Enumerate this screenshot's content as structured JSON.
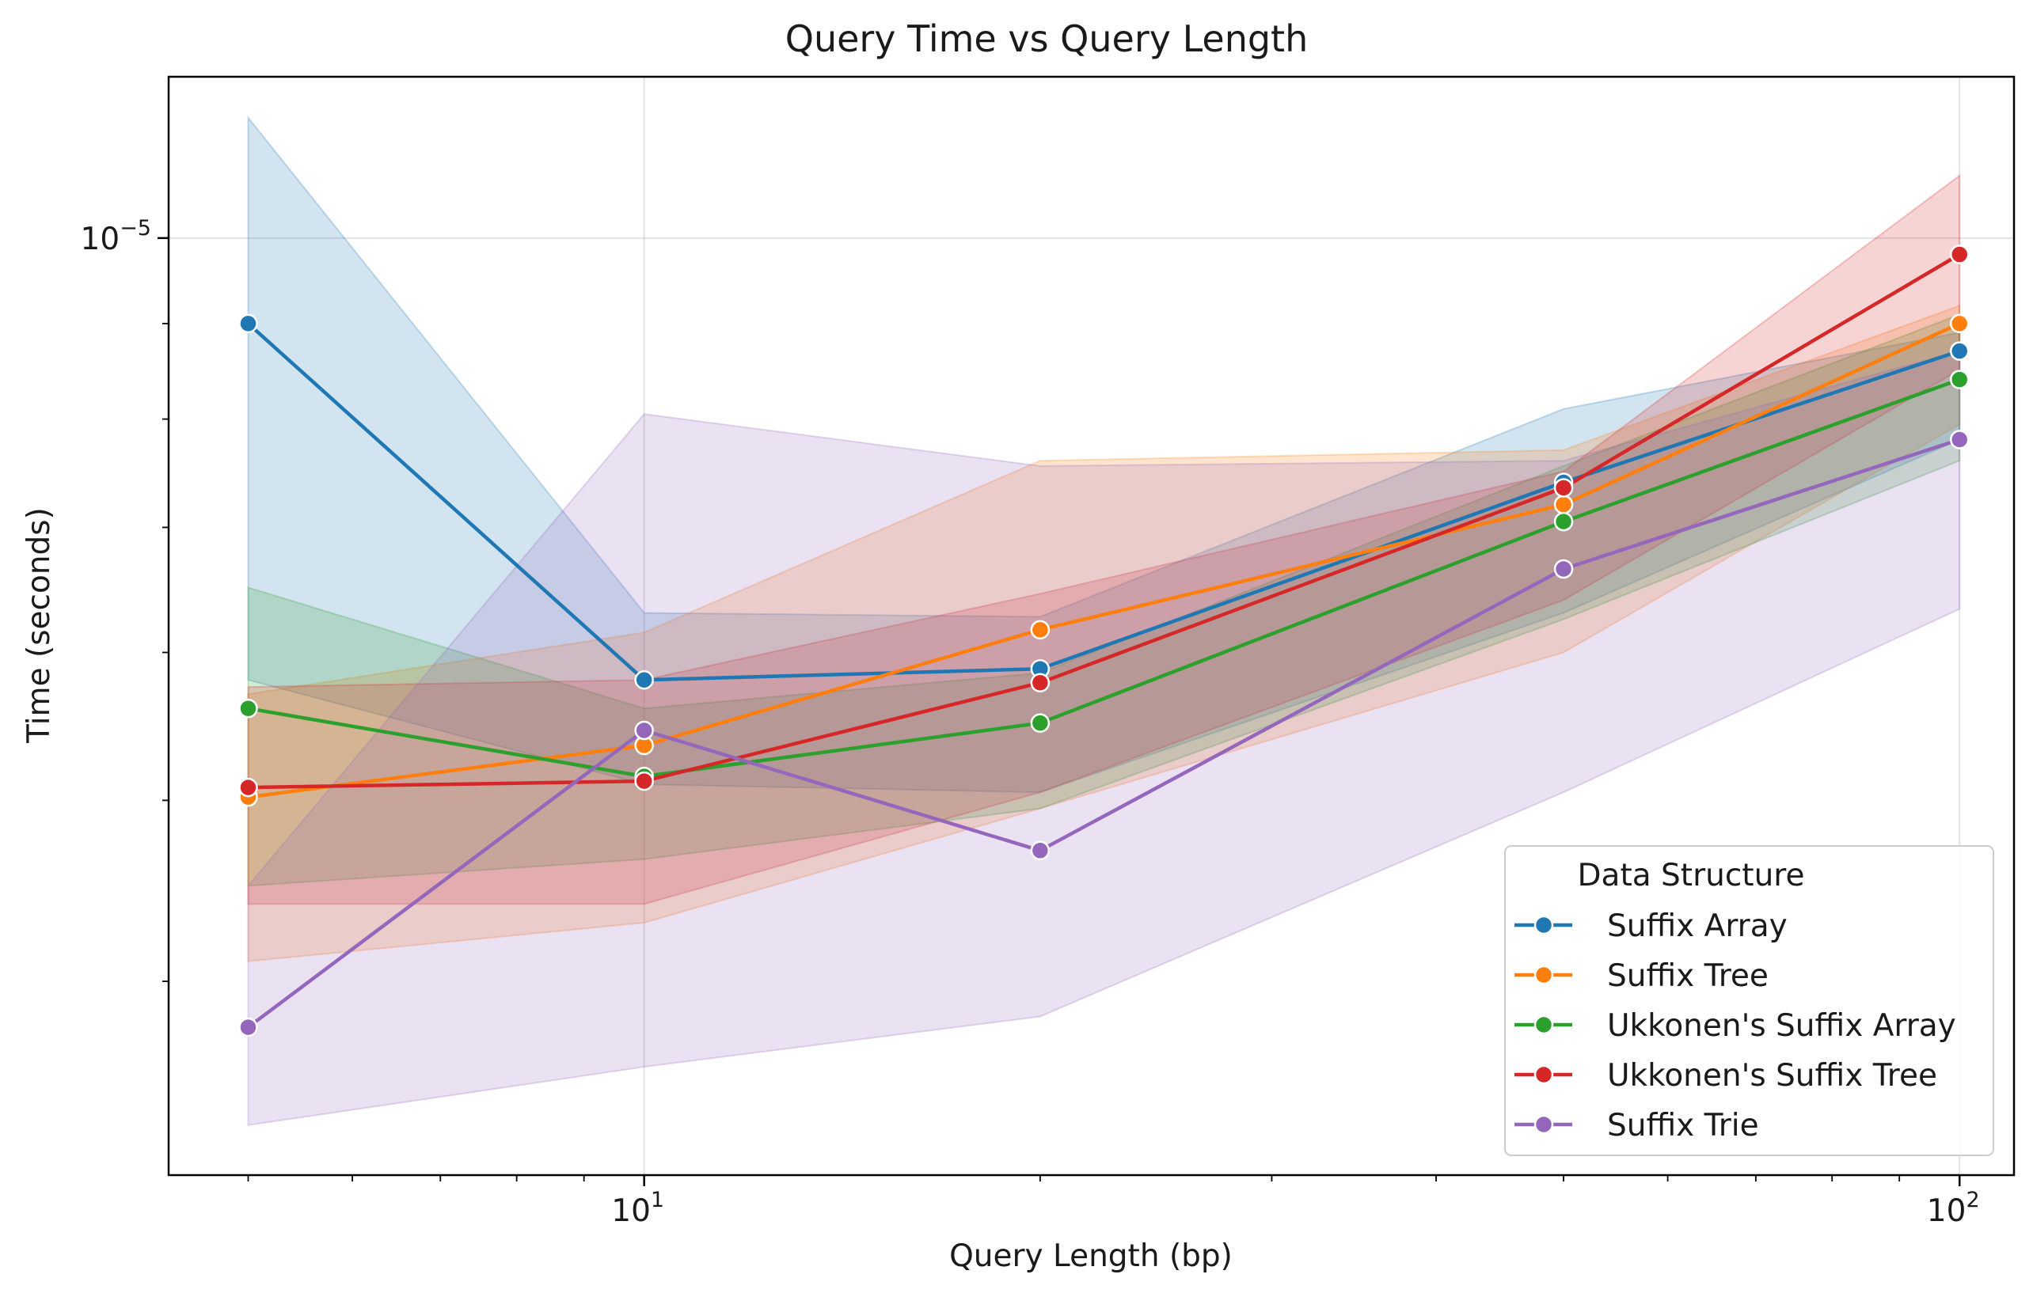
{
  "chart_data": {
    "type": "line",
    "title": "Query Time vs Query Length",
    "xlabel": "Query Length (bp)",
    "ylabel": "Time (seconds)",
    "xscale": "log",
    "yscale": "log",
    "xlim": [
      4.35,
      110
    ],
    "ylim": [
      3.15e-06,
      1.22e-05
    ],
    "x": [
      5,
      10,
      20,
      50,
      100
    ],
    "x_ticks": [
      {
        "value": 10,
        "base": "10",
        "exp": "1"
      },
      {
        "value": 100,
        "base": "10",
        "exp": "2"
      }
    ],
    "y_ticks": [
      {
        "value": 1e-05,
        "base": "10",
        "exp": "−5"
      }
    ],
    "grid": true,
    "legend": {
      "title": "Data Structure",
      "position": "lower-right"
    },
    "series": [
      {
        "name": "Suffix Array",
        "color": "#1f77b4",
        "values": [
          9e-06,
          5.8e-06,
          5.88e-06,
          7.4e-06,
          8.7e-06
        ],
        "ci_low": [
          5.8e-06,
          5.1e-06,
          5.05e-06,
          6.3e-06,
          7.8e-06
        ],
        "ci_high": [
          1.16e-05,
          6.3e-06,
          6.27e-06,
          8.1e-06,
          8.9e-06
        ]
      },
      {
        "name": "Suffix Tree",
        "color": "#ff7f0e",
        "values": [
          5.02e-06,
          5.35e-06,
          6.17e-06,
          7.2e-06,
          9e-06
        ],
        "ci_low": [
          4.1e-06,
          4.3e-06,
          4.95e-06,
          6e-06,
          7.95e-06
        ],
        "ci_high": [
          5.7e-06,
          6.15e-06,
          7.6e-06,
          7.7e-06,
          9.2e-06
        ]
      },
      {
        "name": "Ukkonen's Suffix Array",
        "color": "#2ca02c",
        "values": [
          5.6e-06,
          5.15e-06,
          5.5e-06,
          7.05e-06,
          8.4e-06
        ],
        "ci_low": [
          4.5e-06,
          4.65e-06,
          4.95e-06,
          6.25e-06,
          7.6e-06
        ],
        "ci_high": [
          6.5e-06,
          5.6e-06,
          5.85e-06,
          7.55e-06,
          9.1e-06
        ]
      },
      {
        "name": "Ukkonen's Suffix Tree",
        "color": "#d62728",
        "values": [
          5.08e-06,
          5.12e-06,
          5.78e-06,
          7.35e-06,
          9.8e-06
        ],
        "ci_low": [
          4.4e-06,
          4.4e-06,
          5.05e-06,
          6.4e-06,
          8.5e-06
        ],
        "ci_high": [
          5.75e-06,
          5.8e-06,
          6.45e-06,
          7.5e-06,
          1.08e-05
        ]
      },
      {
        "name": "Suffix Trie",
        "color": "#9467bd",
        "values": [
          3.78e-06,
          5.45e-06,
          4.7e-06,
          6.65e-06,
          7.8e-06
        ],
        "ci_low": [
          3.35e-06,
          3.6e-06,
          3.83e-06,
          5.05e-06,
          6.33e-06
        ],
        "ci_high": [
          4.5e-06,
          8.05e-06,
          7.55e-06,
          7.6e-06,
          8.7e-06
        ]
      }
    ]
  }
}
